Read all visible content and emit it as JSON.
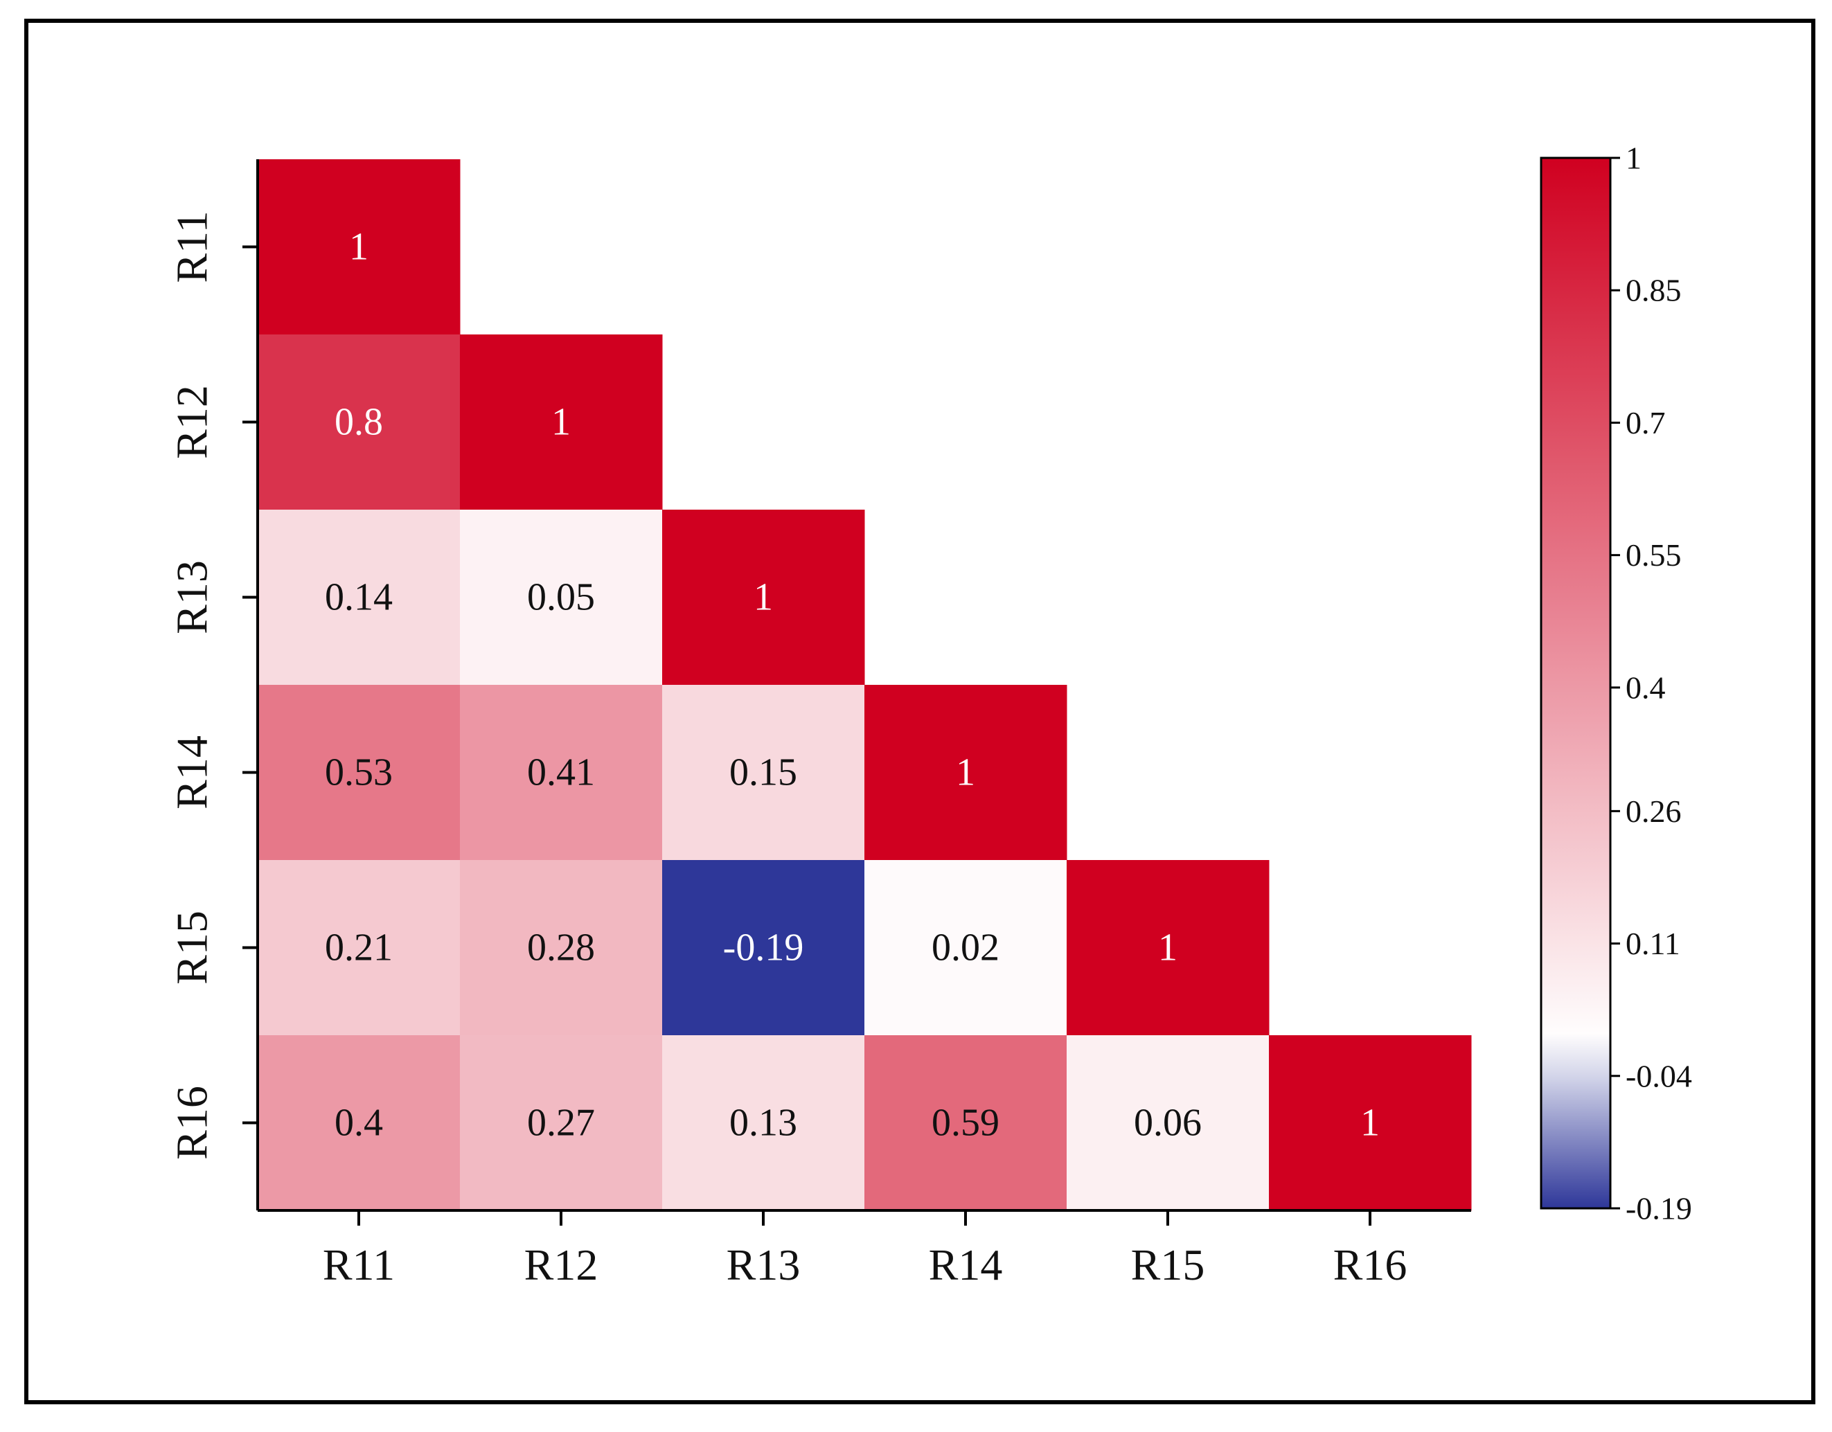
{
  "chart_data": {
    "type": "heatmap",
    "variant": "lower-triangular correlation matrix",
    "labels": [
      "R11",
      "R12",
      "R13",
      "R14",
      "R15",
      "R16"
    ],
    "matrix": [
      [
        1,
        null,
        null,
        null,
        null,
        null
      ],
      [
        0.8,
        1,
        null,
        null,
        null,
        null
      ],
      [
        0.14,
        0.05,
        1,
        null,
        null,
        null
      ],
      [
        0.53,
        0.41,
        0.15,
        1,
        null,
        null
      ],
      [
        0.21,
        0.28,
        -0.19,
        0.02,
        1,
        null
      ],
      [
        0.4,
        0.27,
        0.13,
        0.59,
        0.06,
        1
      ]
    ],
    "colorbar": {
      "min": -0.19,
      "max": 1,
      "ticks": [
        1,
        0.85,
        0.7,
        0.55,
        0.4,
        0.26,
        0.11,
        -0.04,
        -0.19
      ],
      "tick_labels": [
        "1",
        "0.85",
        "0.7",
        "0.55",
        "0.4",
        "0.26",
        "0.11",
        "-0.04",
        "-0.19"
      ],
      "colors": {
        "low": "#2e3799",
        "mid": "#ffffff",
        "high": "#d00020"
      }
    },
    "title": "",
    "xlabel": "",
    "ylabel": ""
  }
}
